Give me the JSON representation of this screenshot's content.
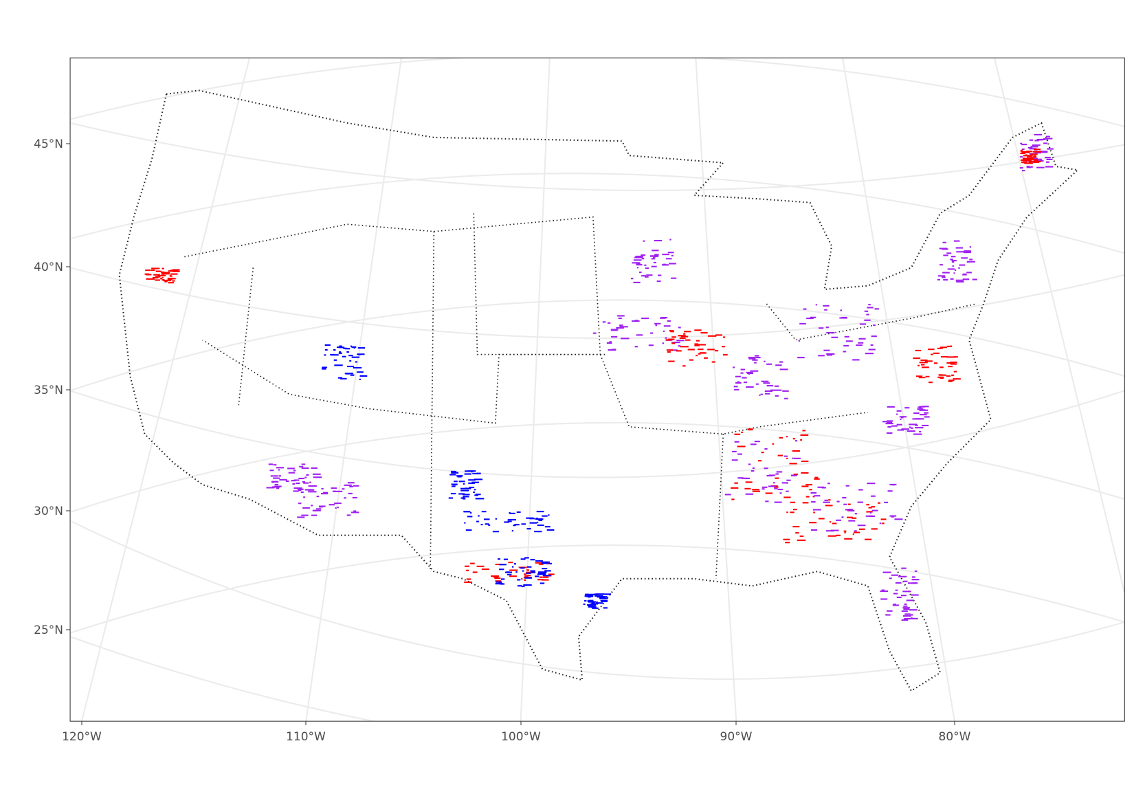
{
  "map": {
    "lat_labels": [
      "45°N",
      "40°N",
      "35°N",
      "30°N",
      "25°N"
    ],
    "lon_labels": [
      "120°W",
      "110°W",
      "100°W",
      "90°W",
      "80°W"
    ]
  }
}
